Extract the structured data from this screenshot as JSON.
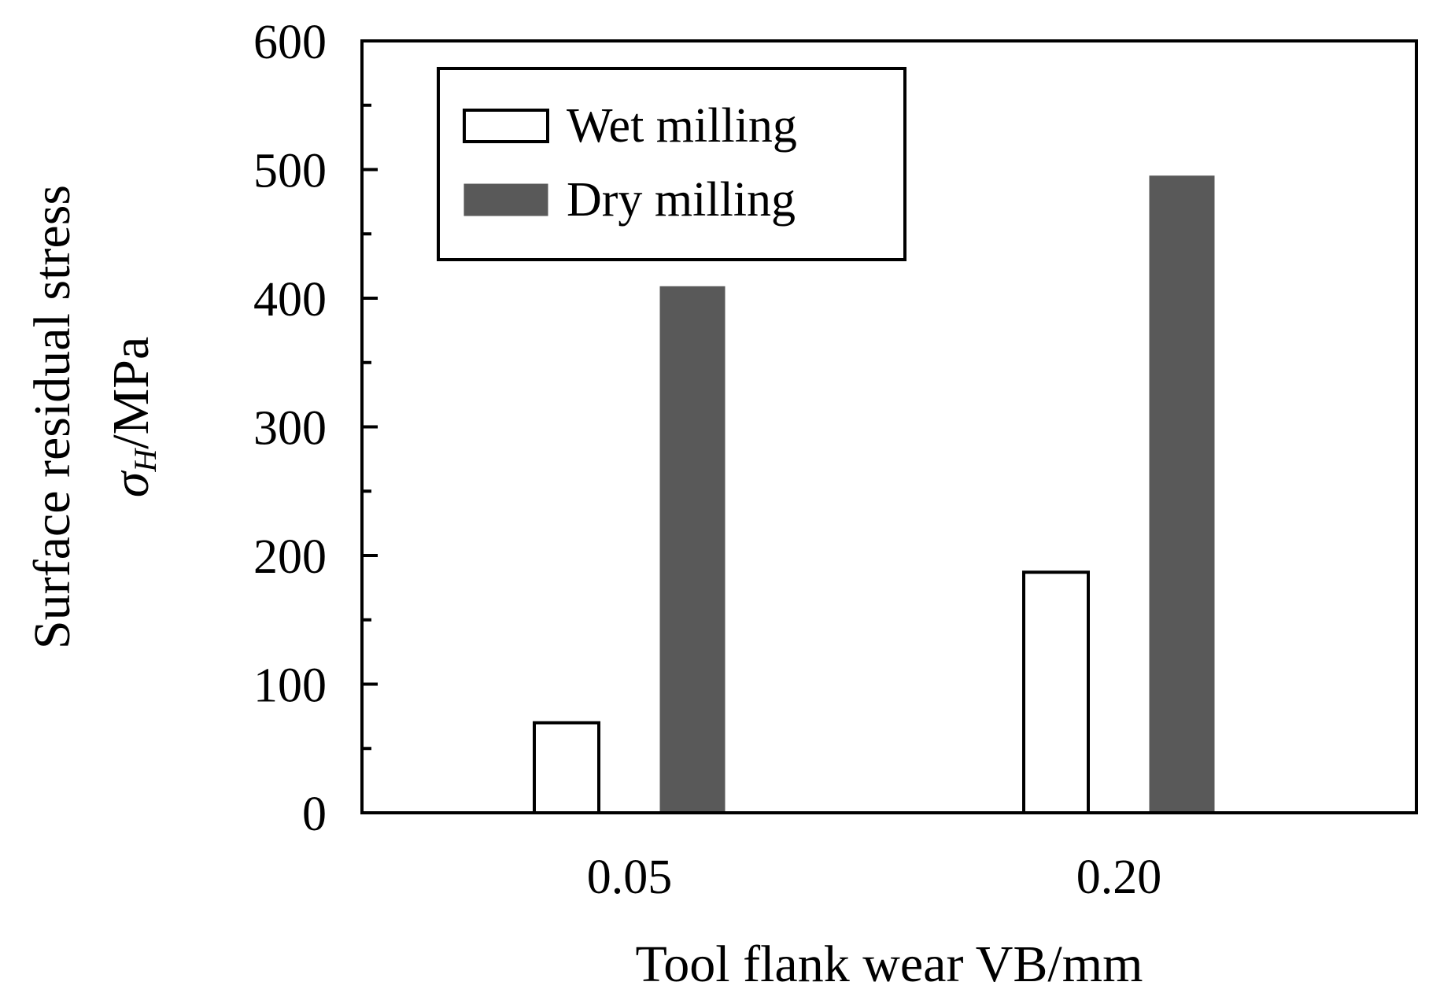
{
  "chart_data": {
    "type": "bar",
    "title": "",
    "xlabel": "Tool flank wear VB/mm",
    "ylabel_line1": "Surface residual stress",
    "ylabel_symbol": "σ",
    "ylabel_subscript": "H",
    "ylabel_unit": "/MPa",
    "categories": [
      "0.05",
      "0.20"
    ],
    "ylim": [
      0,
      600
    ],
    "yticks": [
      0,
      100,
      200,
      300,
      400,
      500,
      600
    ],
    "ytick_labels": [
      "0",
      "100",
      "200",
      "300",
      "400",
      "500",
      "600"
    ],
    "y_minor_step": 50,
    "legend_position": "top-left",
    "series": [
      {
        "name": "Wet milling",
        "values": [
          70,
          187
        ],
        "fill": "#ffffff",
        "stroke": "#000000"
      },
      {
        "name": "Dry milling",
        "values": [
          409,
          495
        ],
        "fill": "#595959",
        "stroke": "#595959"
      }
    ]
  }
}
